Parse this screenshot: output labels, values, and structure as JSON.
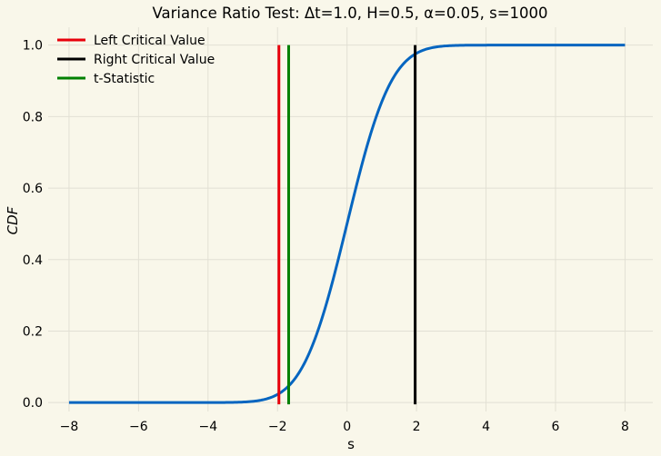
{
  "chart_data": {
    "type": "line",
    "title": "Variance Ratio Test: Δt=1.0, H=0.5, α=0.05, s=1000",
    "xlabel": "s",
    "ylabel": "CDF",
    "xlim": [
      -8.6,
      8.8
    ],
    "ylim": [
      -0.025,
      1.05
    ],
    "xticks": [
      -8,
      -6,
      -4,
      -2,
      0,
      2,
      4,
      6,
      8
    ],
    "yticks": [
      0.0,
      0.2,
      0.4,
      0.6,
      0.8,
      1.0
    ],
    "xtick_labels": [
      "−8",
      "−6",
      "−4",
      "−2",
      "0",
      "2",
      "4",
      "6",
      "8"
    ],
    "ytick_labels": [
      "0.0",
      "0.2",
      "0.4",
      "0.6",
      "0.8",
      "1.0"
    ],
    "grid": true,
    "legend_position": "top-left",
    "series": [
      {
        "name": "",
        "kind": "curve",
        "color": "#0565c0",
        "x": [
          -8,
          -4,
          -3,
          -2.5,
          -2,
          -1.5,
          -1,
          -0.5,
          0,
          0.5,
          1,
          1.5,
          2,
          2.5,
          3,
          4,
          8
        ],
        "y": [
          0.0,
          0.0,
          0.001,
          0.006,
          0.023,
          0.067,
          0.159,
          0.309,
          0.5,
          0.691,
          0.841,
          0.933,
          0.977,
          0.994,
          0.999,
          1.0,
          1.0
        ]
      },
      {
        "name": "Left Critical Value",
        "kind": "vline",
        "color": "#e8000b",
        "x": -1.96,
        "y_range": [
          0,
          1
        ]
      },
      {
        "name": "Right Critical Value",
        "kind": "vline",
        "color": "#000000",
        "x": 1.96,
        "y_range": [
          0,
          1
        ]
      },
      {
        "name": "t-Statistic",
        "kind": "vline",
        "color": "#008000",
        "x": -1.68,
        "y_range": [
          0,
          1
        ]
      }
    ]
  }
}
